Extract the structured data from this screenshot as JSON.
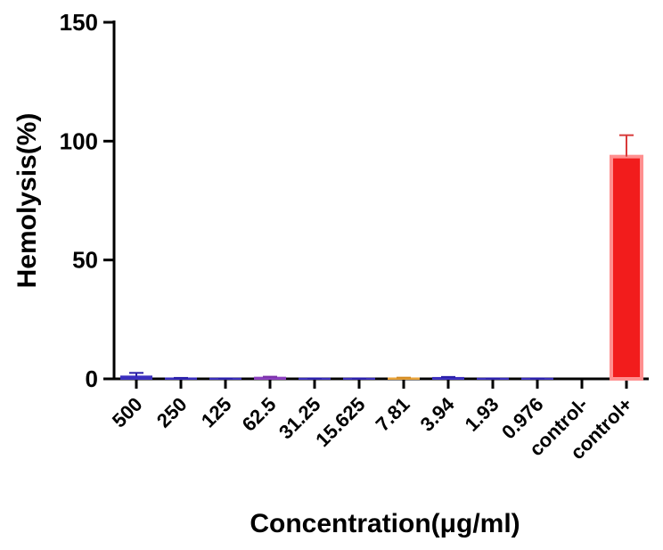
{
  "chart_data": {
    "type": "bar",
    "title": "",
    "xlabel": "Concentration(μg/ml)",
    "ylabel": "Hemolysis(%)",
    "ylim": [
      0,
      150
    ],
    "yticks": [
      0,
      50,
      100,
      150
    ],
    "grid": false,
    "categories": [
      "500",
      "250",
      "125",
      "62.5",
      "31.25",
      "15.625",
      "7.81",
      "3.94",
      "1.93",
      "0.976",
      "control-",
      "control+"
    ],
    "values": [
      1.0,
      0.2,
      0.1,
      0.5,
      0.1,
      0.1,
      0.2,
      0.4,
      0.1,
      0.1,
      0.0,
      93.5
    ],
    "errors": [
      1.5,
      0.2,
      0.1,
      0.4,
      0.1,
      0.1,
      0.3,
      0.4,
      0.1,
      0.1,
      0.0,
      9.0
    ],
    "colors": [
      "#3b2fbf",
      "#3b2fbf",
      "#3b2fbf",
      "#8b3fbf",
      "#3b2fbf",
      "#3b2fbf",
      "#e8a33a",
      "#3b2fbf",
      "#3b2fbf",
      "#3b2fbf",
      "#3b2fbf",
      "#f21c1c"
    ],
    "error_colors": [
      "#2a1fa8",
      "#2a1fa8",
      "#2a1fa8",
      "#7a2fa8",
      "#2a1fa8",
      "#2a1fa8",
      "#d48a20",
      "#2a1fa8",
      "#2a1fa8",
      "#2a1fa8",
      "#2a1fa8",
      "#d83a3a"
    ],
    "bar_highlight": "#ff8f8f"
  }
}
